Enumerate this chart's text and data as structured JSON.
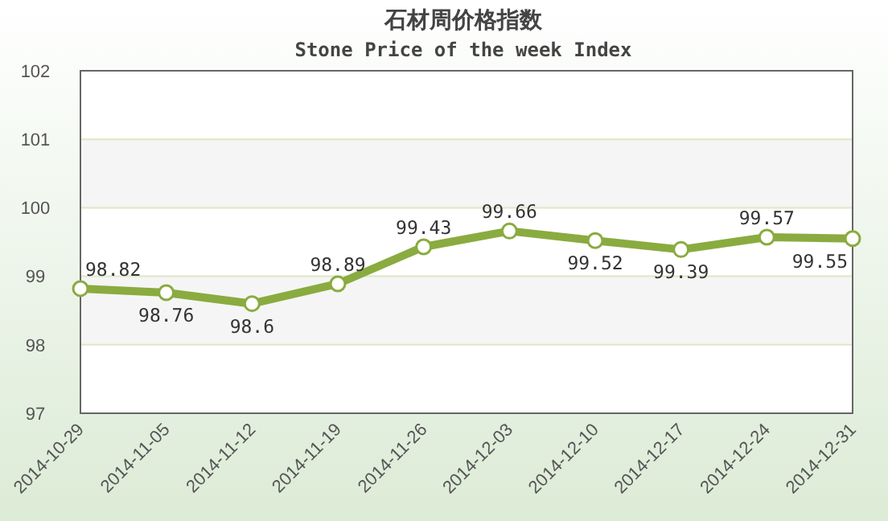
{
  "chart_data": {
    "type": "line",
    "title": "石材周价格指数",
    "subtitle": "Stone Price of the week Index",
    "categories": [
      "2014-10-29",
      "2014-11-05",
      "2014-11-12",
      "2014-11-19",
      "2014-11-26",
      "2014-12-03",
      "2014-12-10",
      "2014-12-17",
      "2014-12-24",
      "2014-12-31"
    ],
    "series": [
      {
        "color": "#8aab3f",
        "values": [
          98.82,
          98.76,
          98.6,
          98.89,
          99.43,
          99.66,
          99.52,
          99.39,
          99.57,
          99.55
        ]
      }
    ],
    "ylim": [
      97,
      102
    ],
    "yticks": [
      97,
      98,
      99,
      100,
      101,
      102
    ],
    "grid": "y",
    "marker": "circle",
    "data_labels": true
  }
}
